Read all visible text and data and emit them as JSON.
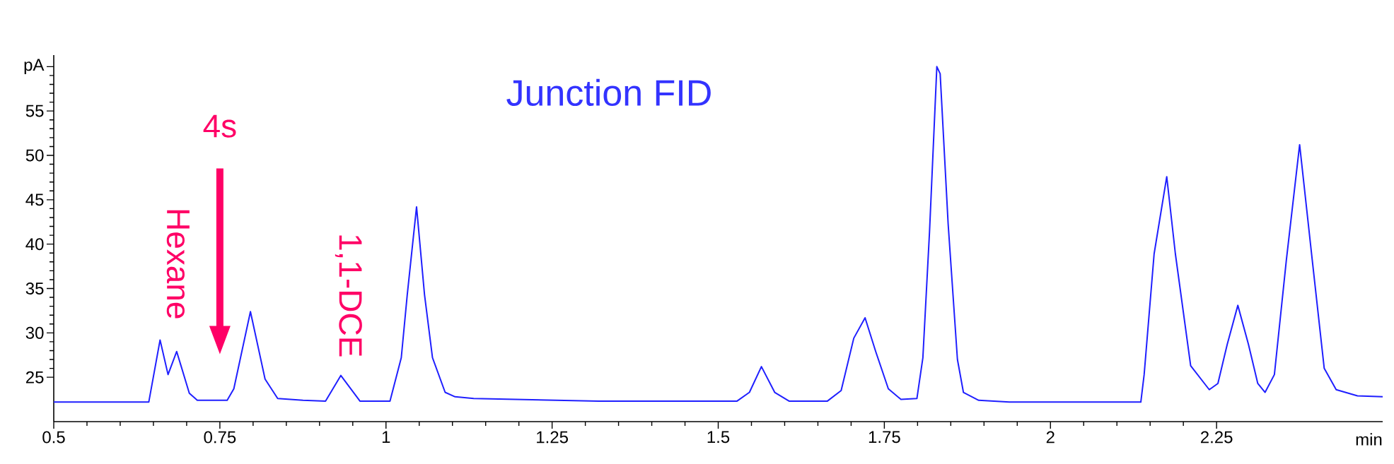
{
  "chart_data": {
    "type": "line",
    "title": "Junction FID",
    "xlabel": "min",
    "xlim": [
      0.5,
      2.5
    ],
    "ylim": [
      20,
      61.3
    ],
    "xticks": [
      0.5,
      0.75,
      1,
      1.25,
      1.5,
      1.75,
      2,
      2.25
    ],
    "yticks": [
      25,
      30,
      35,
      40,
      45,
      50,
      55,
      {
        "value": 60,
        "label": "pA"
      }
    ],
    "color": "#1f1fff",
    "x": [
      0.5,
      0.643,
      0.66,
      0.672,
      0.685,
      0.704,
      0.716,
      0.761,
      0.771,
      0.796,
      0.818,
      0.837,
      0.875,
      0.909,
      0.932,
      0.961,
      1.006,
      1.023,
      1.032,
      1.046,
      1.058,
      1.07,
      1.089,
      1.104,
      1.132,
      1.32,
      1.528,
      1.547,
      1.565,
      1.585,
      1.607,
      1.664,
      1.685,
      1.704,
      1.721,
      1.737,
      1.756,
      1.775,
      1.799,
      1.808,
      1.818,
      1.829,
      1.834,
      1.846,
      1.86,
      1.869,
      1.892,
      1.938,
      2.136,
      2.141,
      2.156,
      2.175,
      2.188,
      2.211,
      2.239,
      2.252,
      2.266,
      2.282,
      2.298,
      2.312,
      2.323,
      2.337,
      2.355,
      2.375,
      2.394,
      2.412,
      2.43,
      2.462,
      2.5
    ],
    "values": [
      22.2,
      22.2,
      29.2,
      25.3,
      27.9,
      23.2,
      22.4,
      22.4,
      23.7,
      32.4,
      24.8,
      22.6,
      22.4,
      22.3,
      25.2,
      22.3,
      22.3,
      27.2,
      34.3,
      44.2,
      34.3,
      27.2,
      23.3,
      22.8,
      22.6,
      22.3,
      22.3,
      23.3,
      26.2,
      23.3,
      22.3,
      22.3,
      23.5,
      29.4,
      31.7,
      27.9,
      23.7,
      22.5,
      22.6,
      27.2,
      41.4,
      60.0,
      59.2,
      42.3,
      27.0,
      23.3,
      22.4,
      22.2,
      22.2,
      25.3,
      38.9,
      47.6,
      38.9,
      26.3,
      23.6,
      24.3,
      28.7,
      33.1,
      28.7,
      24.3,
      23.3,
      25.3,
      38.2,
      51.2,
      38.2,
      26.0,
      23.6,
      22.9,
      22.8
    ],
    "annotations": [
      "4s",
      {
        "text": "Hexane",
        "x": 0.685,
        "y": 27.9
      },
      {
        "text": "1,1-DCE",
        "x": 0.932,
        "y": 25.2
      }
    ]
  }
}
